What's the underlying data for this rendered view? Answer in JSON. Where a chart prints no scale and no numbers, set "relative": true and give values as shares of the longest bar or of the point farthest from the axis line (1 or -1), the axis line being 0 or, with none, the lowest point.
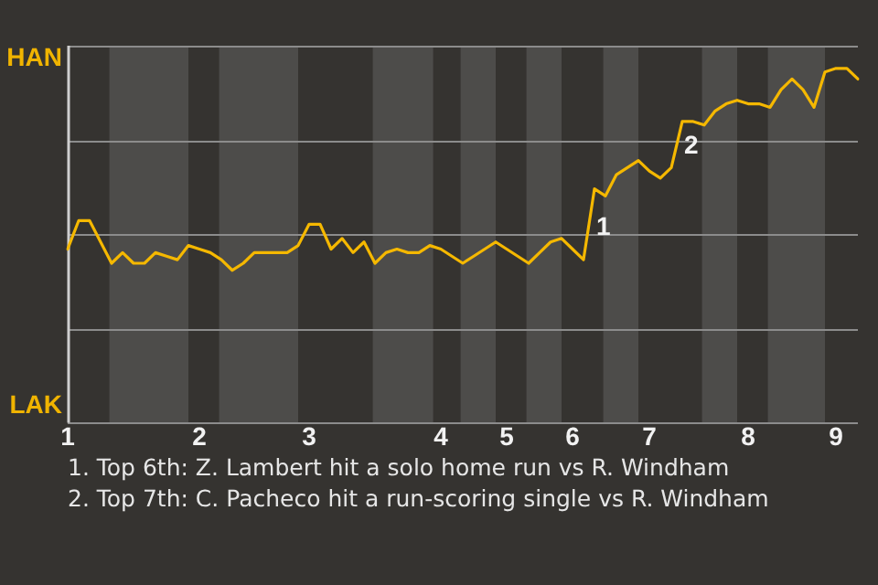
{
  "chart_data": {
    "type": "line",
    "relative": true,
    "categories": [
      "1",
      null,
      null,
      null,
      null,
      null,
      null,
      null,
      null,
      null,
      null,
      null,
      "2",
      null,
      null,
      null,
      null,
      null,
      null,
      null,
      null,
      null,
      "3",
      null,
      null,
      null,
      null,
      null,
      null,
      null,
      null,
      null,
      null,
      null,
      "4",
      null,
      null,
      null,
      null,
      null,
      "5",
      null,
      null,
      null,
      null,
      null,
      "6",
      null,
      null,
      null,
      null,
      null,
      null,
      "7",
      null,
      null,
      null,
      null,
      null,
      null,
      null,
      null,
      "8",
      null,
      null,
      null,
      null,
      null,
      null,
      null,
      "9",
      null,
      null
    ],
    "series": [
      {
        "color": "#f5b800",
        "values": [
          0.49,
          0.57,
          0.57,
          0.51,
          0.45,
          0.48,
          0.45,
          0.45,
          0.48,
          0.47,
          0.46,
          0.5,
          0.49,
          0.48,
          0.46,
          0.43,
          0.45,
          0.48,
          0.48,
          0.48,
          0.48,
          0.5,
          0.56,
          0.56,
          0.49,
          0.52,
          0.48,
          0.51,
          0.45,
          0.48,
          0.49,
          0.48,
          0.48,
          0.5,
          0.49,
          0.47,
          0.45,
          0.47,
          0.49,
          0.51,
          0.49,
          0.47,
          0.45,
          0.48,
          0.51,
          0.52,
          0.49,
          0.46,
          0.66,
          0.64,
          0.7,
          0.72,
          0.74,
          0.71,
          0.69,
          0.72,
          0.85,
          0.85,
          0.84,
          0.88,
          0.9,
          0.91,
          0.9,
          0.9,
          0.89,
          0.94,
          0.97,
          0.94,
          0.89,
          0.99,
          1,
          1,
          0.97
        ]
      }
    ],
    "ref_lines": [
      {
        "axis": "y",
        "value": 0,
        "label": "LAK",
        "color": "#8c8c8c"
      },
      {
        "axis": "y",
        "value": 0.266,
        "label": null,
        "color": "#8c8c8c"
      },
      {
        "axis": "y",
        "value": 0.532,
        "label": null,
        "color": "#8c8c8c"
      },
      {
        "axis": "y",
        "value": 0.798,
        "label": null,
        "color": "#8c8c8c"
      },
      {
        "axis": "y",
        "value": 1.064,
        "label": "HAN",
        "color": "#8c8c8c"
      }
    ],
    "annotations": [
      {
        "text": "1",
        "y": 0.55
      },
      {
        "text": "2",
        "y": 0.78
      },
      "1. Top 6th: Z. Lambert hit a solo home run vs R. Windham",
      "2. Top 7th: C. Pacheco hit a run-scoring single vs R. Windham"
    ],
    "marker": "none",
    "line_style": "solid"
  }
}
